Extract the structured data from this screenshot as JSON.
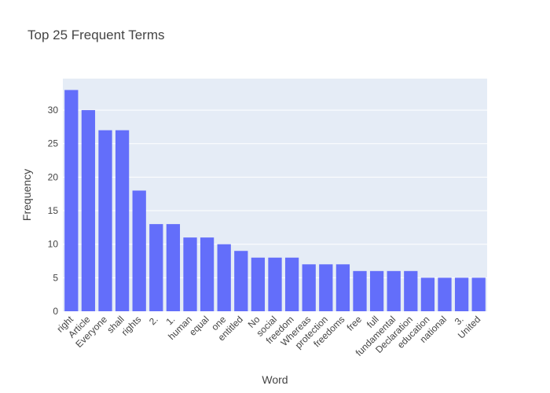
{
  "chart_data": {
    "type": "bar",
    "title": "Top 25 Frequent Terms",
    "xlabel": "Word",
    "ylabel": "Frequency",
    "categories": [
      "right",
      "Article",
      "Everyone",
      "shall",
      "rights",
      "2.",
      "1.",
      "human",
      "equal",
      "one",
      "entitled",
      "No",
      "social",
      "freedom",
      "Whereas",
      "protection",
      "freedoms",
      "free",
      "full",
      "fundamental",
      "Declaration",
      "education",
      "national",
      "3.",
      "United"
    ],
    "values": [
      33,
      30,
      27,
      27,
      18,
      13,
      13,
      11,
      11,
      10,
      9,
      8,
      8,
      8,
      7,
      7,
      7,
      6,
      6,
      6,
      6,
      5,
      5,
      5,
      5
    ],
    "ylim": [
      0,
      34.7
    ],
    "yticks": [
      0,
      5,
      10,
      15,
      20,
      25,
      30
    ],
    "grid": true,
    "bar_color": "#636efa",
    "plot_bg": "#e5ecf6"
  }
}
